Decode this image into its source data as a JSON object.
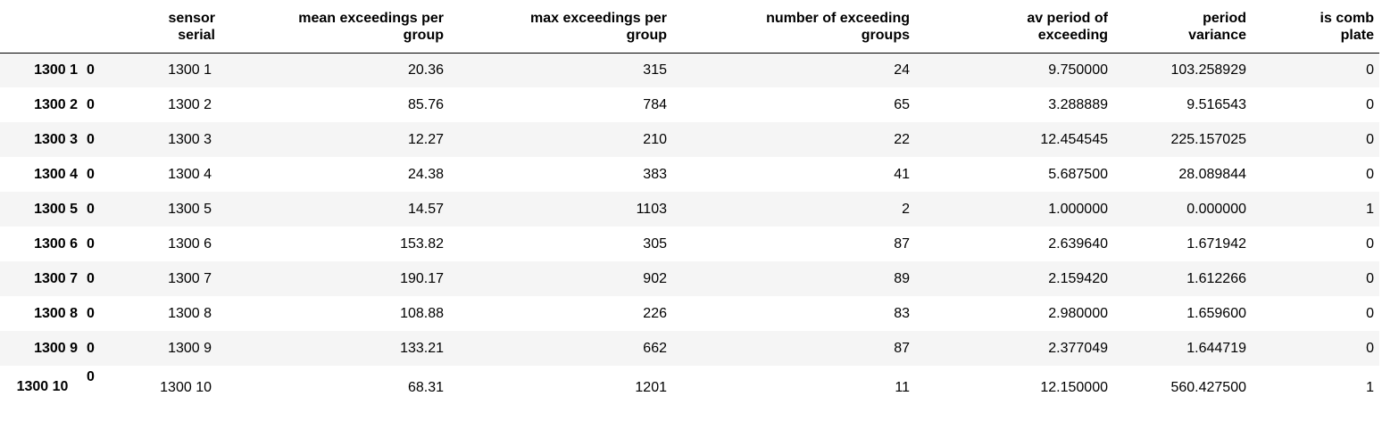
{
  "table": {
    "headers": [
      "sensor serial",
      "mean exceedings per group",
      "max exceedings per group",
      "number of exceeding groups",
      "av period of exceeding",
      "period variance",
      "is comb plate"
    ],
    "header_lines": [
      [
        "sensor",
        "serial"
      ],
      [
        "mean exceedings per",
        "group"
      ],
      [
        "max exceedings per",
        "group"
      ],
      [
        "number of exceeding",
        "groups"
      ],
      [
        "av period of",
        "exceeding"
      ],
      [
        "period",
        "variance"
      ],
      [
        "is comb",
        "plate"
      ]
    ],
    "rows": [
      {
        "index": [
          "1300 1",
          "0"
        ],
        "cells": [
          "1300 1",
          "20.36",
          "315",
          "24",
          "9.750000",
          "103.258929",
          "0"
        ]
      },
      {
        "index": [
          "1300 2",
          "0"
        ],
        "cells": [
          "1300 2",
          "85.76",
          "784",
          "65",
          "3.288889",
          "9.516543",
          "0"
        ]
      },
      {
        "index": [
          "1300 3",
          "0"
        ],
        "cells": [
          "1300 3",
          "12.27",
          "210",
          "22",
          "12.454545",
          "225.157025",
          "0"
        ]
      },
      {
        "index": [
          "1300 4",
          "0"
        ],
        "cells": [
          "1300 4",
          "24.38",
          "383",
          "41",
          "5.687500",
          "28.089844",
          "0"
        ]
      },
      {
        "index": [
          "1300 5",
          "0"
        ],
        "cells": [
          "1300 5",
          "14.57",
          "1103",
          "2",
          "1.000000",
          "0.000000",
          "1"
        ]
      },
      {
        "index": [
          "1300 6",
          "0"
        ],
        "cells": [
          "1300 6",
          "153.82",
          "305",
          "87",
          "2.639640",
          "1.671942",
          "0"
        ]
      },
      {
        "index": [
          "1300 7",
          "0"
        ],
        "cells": [
          "1300 7",
          "190.17",
          "902",
          "89",
          "2.159420",
          "1.612266",
          "0"
        ]
      },
      {
        "index": [
          "1300 8",
          "0"
        ],
        "cells": [
          "1300 8",
          "108.88",
          "226",
          "83",
          "2.980000",
          "1.659600",
          "0"
        ]
      },
      {
        "index": [
          "1300 9",
          "0"
        ],
        "cells": [
          "1300 9",
          "133.21",
          "662",
          "87",
          "2.377049",
          "1.644719",
          "0"
        ]
      },
      {
        "index": [
          "1300 10",
          "0"
        ],
        "cells": [
          "1300 10",
          "68.31",
          "1201",
          "11",
          "12.150000",
          "560.427500",
          "1"
        ]
      }
    ]
  }
}
